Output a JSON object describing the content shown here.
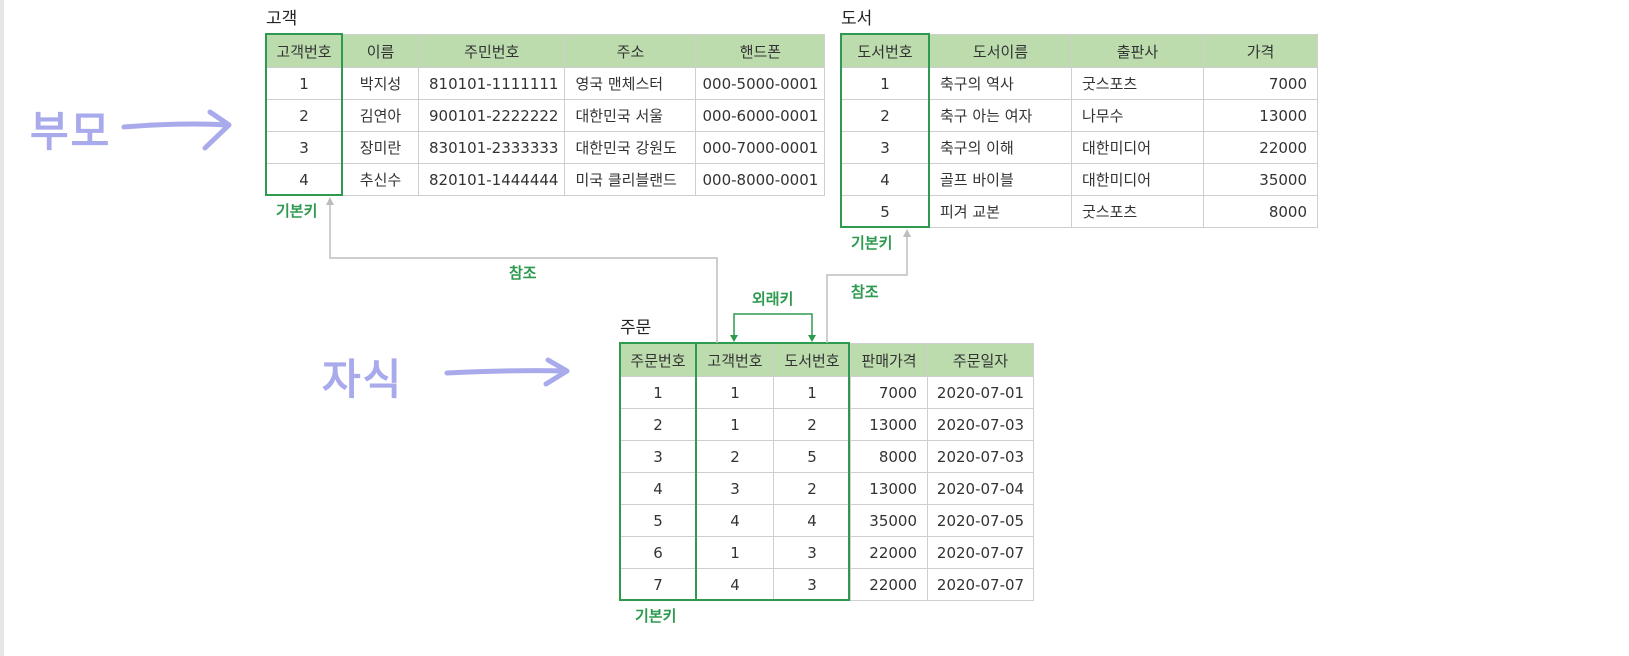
{
  "handwriting": {
    "parent": "부모",
    "child": "자식"
  },
  "customer": {
    "caption": "고객",
    "headers": [
      "고객번호",
      "이름",
      "주민번호",
      "주소",
      "핸드폰"
    ],
    "rows": [
      [
        "1",
        "박지성",
        "810101-1111111",
        "영국 맨체스터",
        "000-5000-0001"
      ],
      [
        "2",
        "김연아",
        "900101-2222222",
        "대한민국 서울",
        "000-6000-0001"
      ],
      [
        "3",
        "장미란",
        "830101-2333333",
        "대한민국 강원도",
        "000-7000-0001"
      ],
      [
        "4",
        "추신수",
        "820101-1444444",
        "미국 클리블랜드",
        "000-8000-0001"
      ]
    ],
    "pk_label": "기본키"
  },
  "book": {
    "caption": "도서",
    "headers": [
      "도서번호",
      "도서이름",
      "출판사",
      "가격"
    ],
    "rows": [
      [
        "1",
        "축구의 역사",
        "굿스포츠",
        "7000"
      ],
      [
        "2",
        "축구 아는 여자",
        "나무수",
        "13000"
      ],
      [
        "3",
        "축구의 이해",
        "대한미디어",
        "22000"
      ],
      [
        "4",
        "골프 바이블",
        "대한미디어",
        "35000"
      ],
      [
        "5",
        "피겨 교본",
        "굿스포츠",
        "8000"
      ]
    ],
    "pk_label": "기본키"
  },
  "order": {
    "caption": "주문",
    "headers": [
      "주문번호",
      "고객번호",
      "도서번호",
      "판매가격",
      "주문일자"
    ],
    "rows": [
      [
        "1",
        "1",
        "1",
        "7000",
        "2020-07-01"
      ],
      [
        "2",
        "1",
        "2",
        "13000",
        "2020-07-03"
      ],
      [
        "3",
        "2",
        "5",
        "8000",
        "2020-07-03"
      ],
      [
        "4",
        "3",
        "2",
        "13000",
        "2020-07-04"
      ],
      [
        "5",
        "4",
        "4",
        "35000",
        "2020-07-05"
      ],
      [
        "6",
        "1",
        "3",
        "22000",
        "2020-07-07"
      ],
      [
        "7",
        "4",
        "3",
        "22000",
        "2020-07-07"
      ]
    ],
    "pk_label": "기본키",
    "fk_label": "외래키"
  },
  "relations": {
    "ref_label_1": "참조",
    "ref_label_2": "참조"
  },
  "colors": {
    "key_green": "#2e9a50",
    "header_green": "#bcdcae",
    "hand_blue": "#a9aaec",
    "line_gray": "#bdbdbd"
  }
}
